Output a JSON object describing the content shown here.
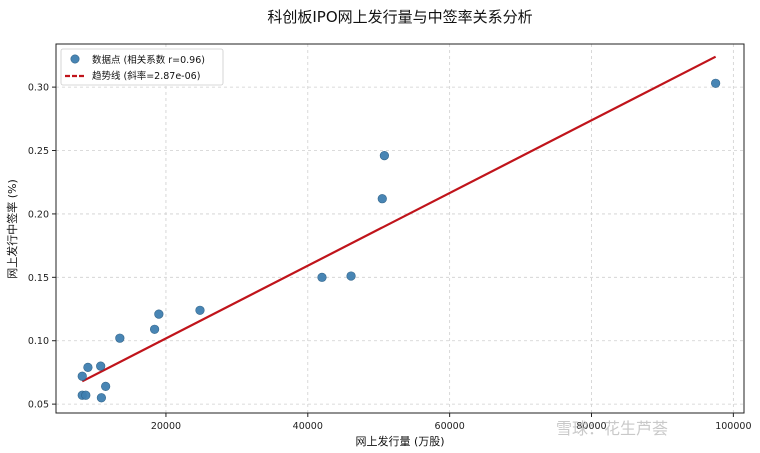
{
  "chart_data": {
    "type": "scatter",
    "title": "科创板IPO网上发行量与中签率关系分析",
    "xlabel": "网上发行量 (万股)",
    "ylabel": "网上发行中签率 (%)",
    "xlim": [
      4500,
      101500
    ],
    "ylim": [
      0.043,
      0.334
    ],
    "xticks": [
      20000,
      40000,
      60000,
      80000,
      100000
    ],
    "yticks": [
      0.05,
      0.1,
      0.15,
      0.2,
      0.25,
      0.3
    ],
    "grid": true,
    "legend_position": "top-left",
    "legend": [
      {
        "label": "数据点 (相关系数 r=0.96)",
        "kind": "marker",
        "color": "#3f7fb0"
      },
      {
        "label": "趋势线 (斜率=2.87e-06)",
        "kind": "dashed-line",
        "color": "#c0141b"
      }
    ],
    "series": [
      {
        "kind": "points",
        "color": "#3f7fb0",
        "points": [
          {
            "x": 8200,
            "y": 0.072
          },
          {
            "x": 8200,
            "y": 0.057
          },
          {
            "x": 8700,
            "y": 0.057
          },
          {
            "x": 9000,
            "y": 0.079
          },
          {
            "x": 10800,
            "y": 0.08
          },
          {
            "x": 10900,
            "y": 0.055
          },
          {
            "x": 11500,
            "y": 0.064
          },
          {
            "x": 13500,
            "y": 0.102
          },
          {
            "x": 18400,
            "y": 0.109
          },
          {
            "x": 19000,
            "y": 0.121
          },
          {
            "x": 24800,
            "y": 0.124
          },
          {
            "x": 42000,
            "y": 0.15
          },
          {
            "x": 46100,
            "y": 0.151
          },
          {
            "x": 50500,
            "y": 0.212
          },
          {
            "x": 50800,
            "y": 0.246
          },
          {
            "x": 97500,
            "y": 0.303
          }
        ]
      },
      {
        "kind": "trend",
        "color": "#c0141b",
        "start": {
          "x": 8200,
          "y": 0.068
        },
        "end": {
          "x": 97500,
          "y": 0.324
        }
      }
    ]
  },
  "watermark": {
    "text": "雪球：花生芦荟"
  }
}
